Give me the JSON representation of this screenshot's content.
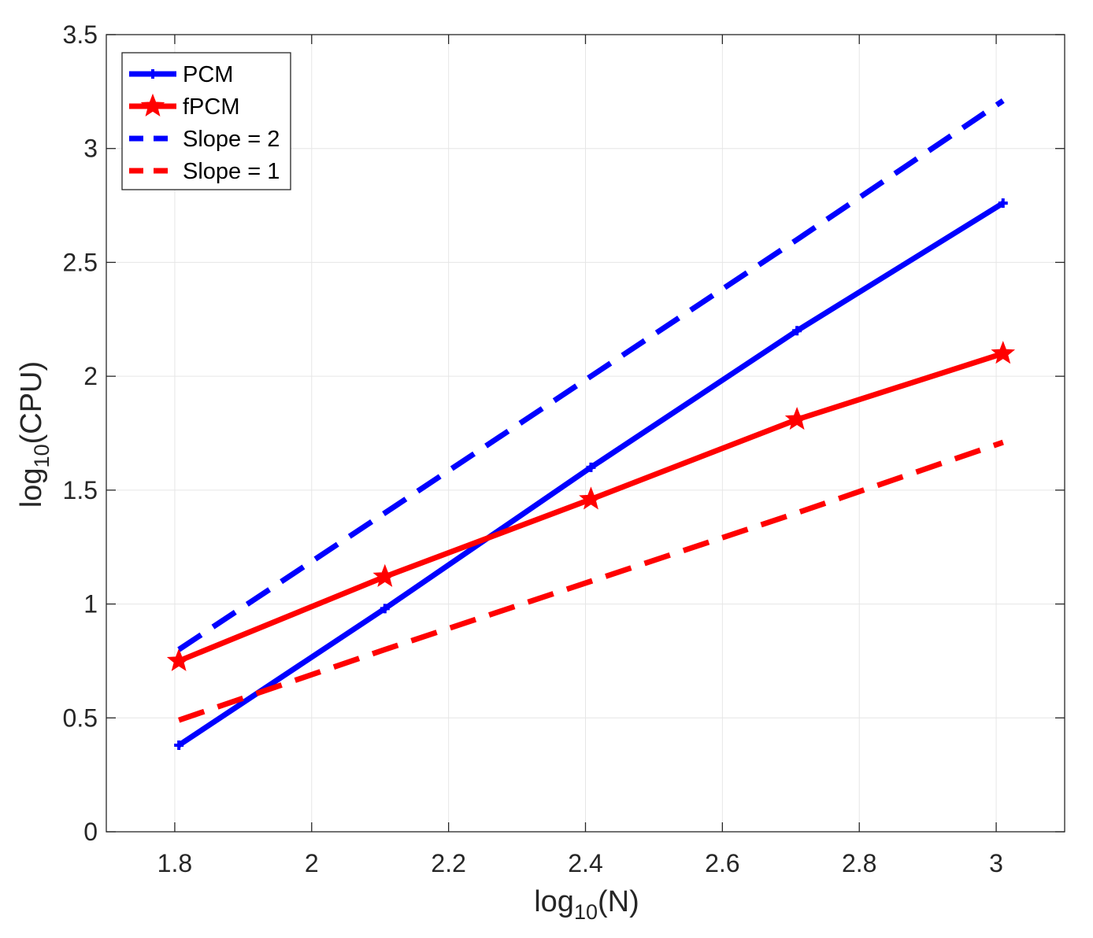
{
  "chart_data": {
    "type": "line",
    "title": "",
    "xlabel": {
      "base": "log",
      "sub": "10",
      "arg": "(N)"
    },
    "ylabel": {
      "base": "log",
      "sub": "10",
      "arg": "(CPU)"
    },
    "xlim": [
      1.7,
      3.1
    ],
    "ylim": [
      0,
      3.5
    ],
    "xticks": [
      1.8,
      2,
      2.2,
      2.4,
      2.6,
      2.8,
      3
    ],
    "xtick_labels": [
      "1.8",
      "2",
      "2.2",
      "2.4",
      "2.6",
      "2.8",
      "3"
    ],
    "yticks": [
      0,
      0.5,
      1,
      1.5,
      2,
      2.5,
      3,
      3.5
    ],
    "ytick_labels": [
      "0",
      "0.5",
      "1",
      "1.5",
      "2",
      "2.5",
      "3",
      "3.5"
    ],
    "grid": true,
    "legend_position": "top-left",
    "series": [
      {
        "name": "PCM",
        "color": "#0000ff",
        "style": "solid",
        "marker": "plus",
        "x": [
          1.806,
          2.107,
          2.408,
          2.709,
          3.01
        ],
        "y": [
          0.38,
          0.98,
          1.6,
          2.2,
          2.76
        ]
      },
      {
        "name": "fPCM",
        "color": "#ff0000",
        "style": "solid",
        "marker": "star",
        "x": [
          1.806,
          2.107,
          2.408,
          2.709,
          3.01
        ],
        "y": [
          0.75,
          1.12,
          1.46,
          1.81,
          2.1
        ]
      },
      {
        "name": "Slope = 2",
        "color": "#0000ff",
        "style": "dashed",
        "marker": "none",
        "x": [
          1.806,
          2.107,
          2.408,
          2.709,
          3.01
        ],
        "y": [
          0.8,
          1.4,
          2.0,
          2.6,
          3.21
        ]
      },
      {
        "name": "Slope = 1",
        "color": "#ff0000",
        "style": "dashed",
        "marker": "none",
        "x": [
          1.806,
          2.107,
          2.408,
          2.709,
          3.01
        ],
        "y": [
          0.49,
          0.8,
          1.1,
          1.4,
          1.71
        ]
      }
    ]
  }
}
